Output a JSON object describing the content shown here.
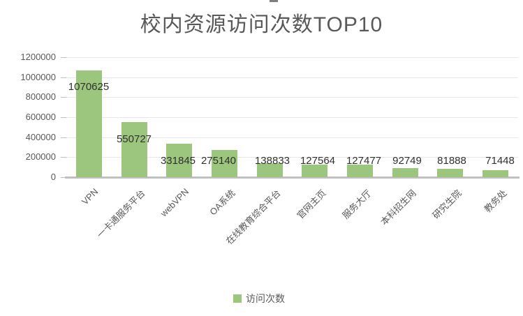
{
  "chart_data": {
    "type": "bar",
    "title": "校内资源访问次数TOP10",
    "categories": [
      "VPN",
      "一卡通服务平台",
      "webVPN",
      "OA系统",
      "在线教育综合平台",
      "官网主页",
      "服务大厅",
      "本科招生网",
      "研究生院",
      "教务处"
    ],
    "values": [
      1070625,
      550727,
      331845,
      275140,
      138833,
      127564,
      127477,
      92749,
      81888,
      71448
    ],
    "series_name": "访问次数",
    "y_ticks": [
      0,
      200000,
      400000,
      600000,
      800000,
      1000000,
      1200000
    ],
    "ylim": [
      0,
      1200000
    ],
    "grid": true,
    "legend_position": "bottom",
    "data_labels_visible": true,
    "bar_color": "#9cc57e",
    "legend_marker_color": "#9cc57e",
    "title_color": "#595959",
    "axis_text_color": "#595959",
    "value_label_color": "#303030",
    "gridline_color": "#e7e7e7",
    "axis_line_color": "#c0c0c0"
  },
  "legend": {
    "label": "访问次数"
  }
}
